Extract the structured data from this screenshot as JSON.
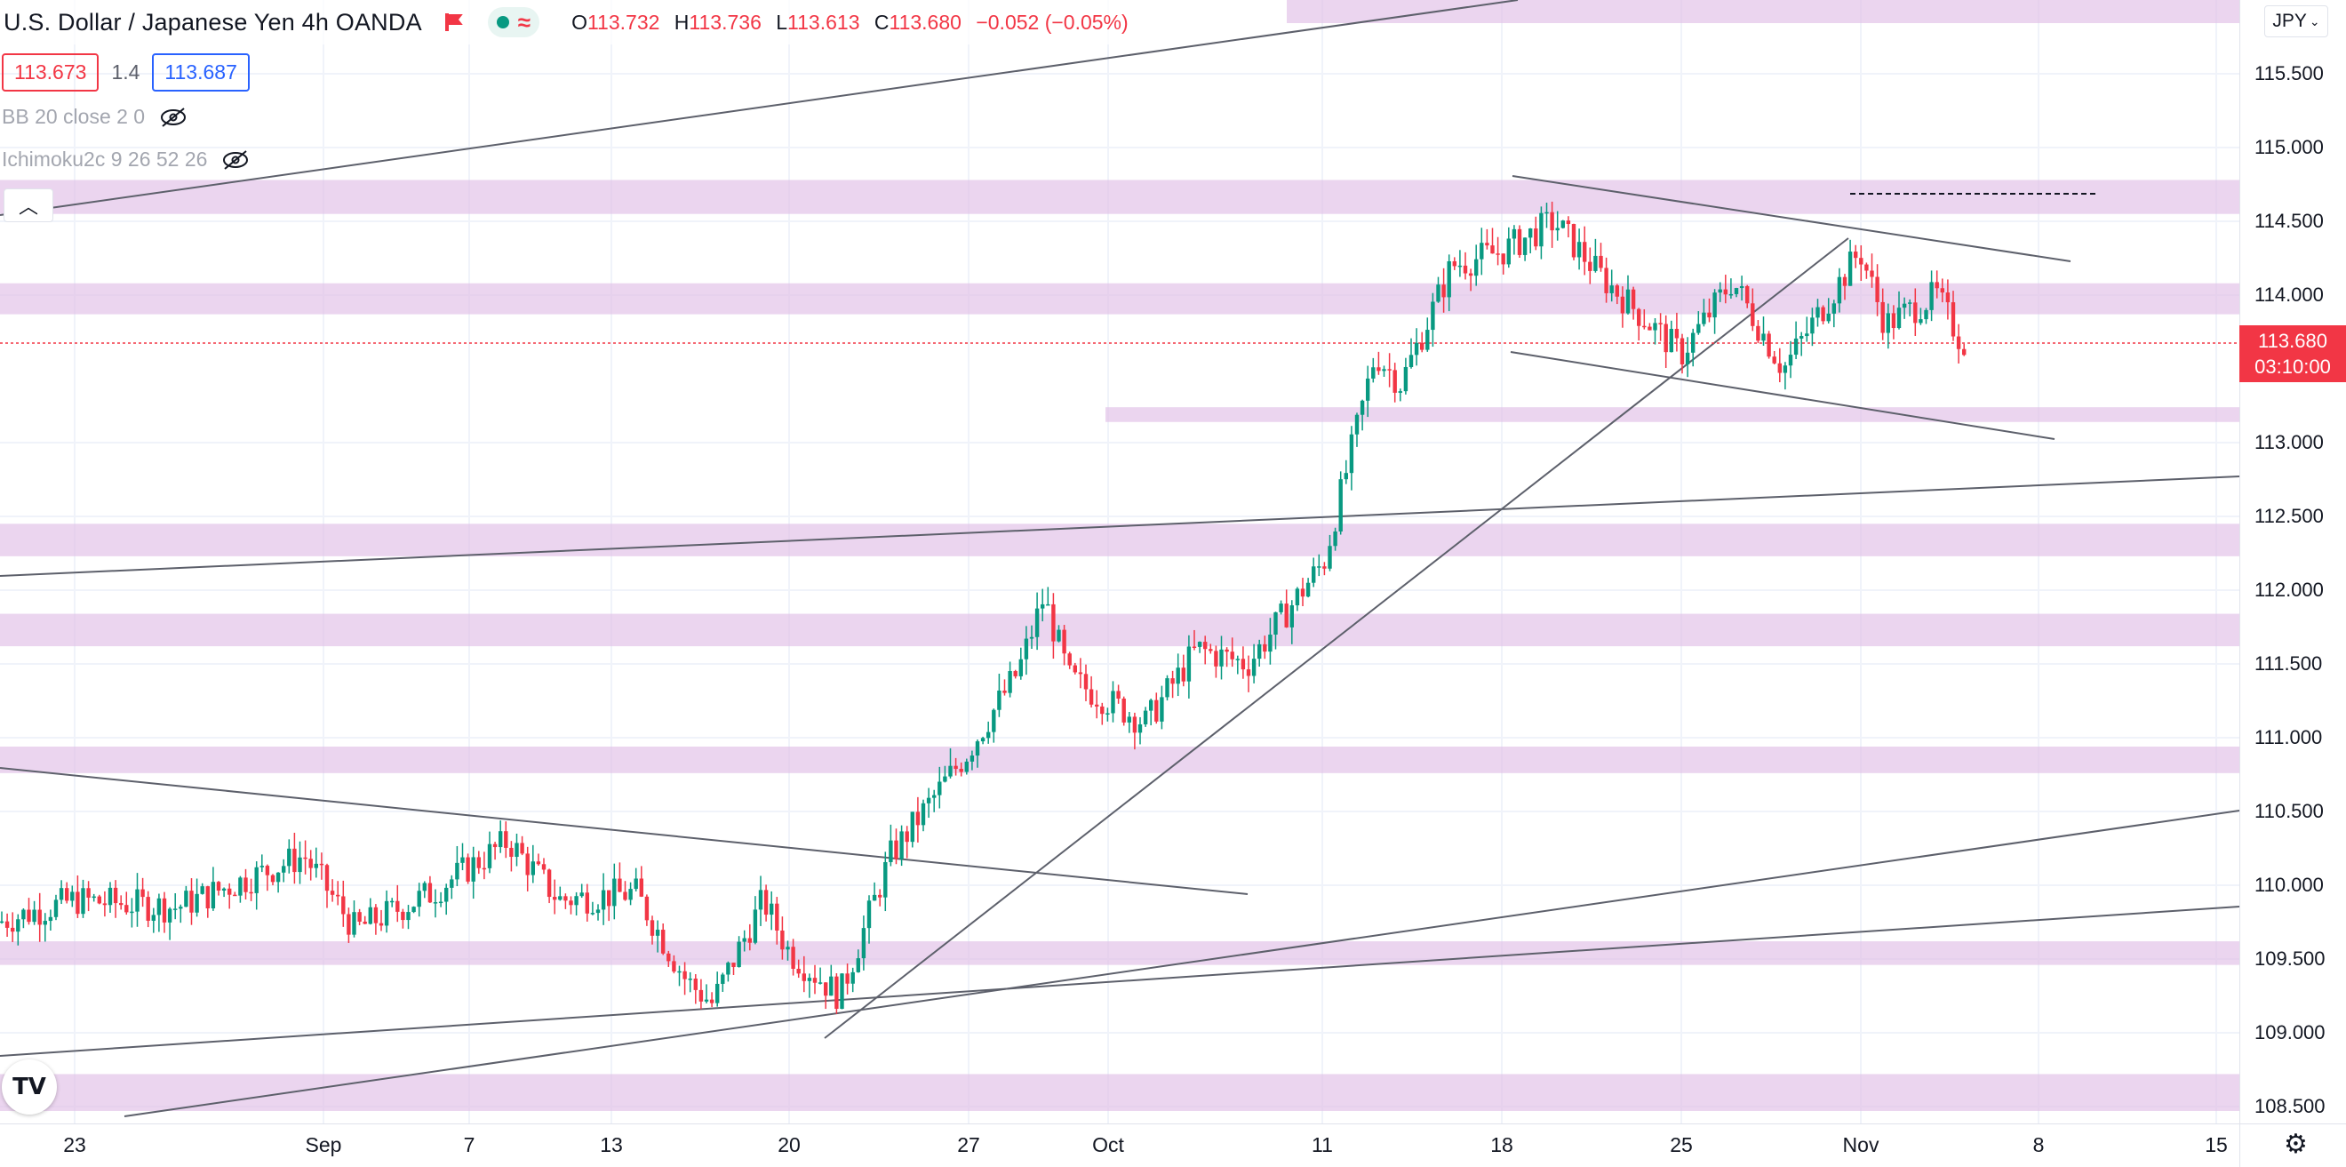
{
  "header": {
    "symbol_title": "U.S. Dollar / Japanese Yen",
    "interval": "4h",
    "broker": "OANDA",
    "ohlc": {
      "o_key": "O",
      "o": "113.732",
      "h_key": "H",
      "h": "113.736",
      "l_key": "L",
      "l": "113.613",
      "c_key": "C",
      "c": "113.680",
      "change": "−0.052 (−0.05%)"
    }
  },
  "quote": {
    "bid": "113.673",
    "spread": "1.4",
    "ask": "113.687"
  },
  "indicators": [
    {
      "label": "BB 20 close 2 0",
      "icon": "eye-crossed-icon"
    },
    {
      "label": "Ichimoku2c 9 26 52 26",
      "icon": "eye-crossed-icon"
    }
  ],
  "currency_selector": "JPY",
  "last_price": {
    "price": "113.680",
    "countdown": "03:10:00"
  },
  "colors": {
    "up": "#089981",
    "down": "#f23645",
    "zone": "#e1bee7",
    "line": "#5d606b"
  },
  "price_axis": {
    "labels": [
      "115.500",
      "115.000",
      "114.500",
      "114.000",
      "113.000",
      "112.500",
      "112.000",
      "111.500",
      "111.000",
      "110.500",
      "110.000",
      "109.500",
      "109.000",
      "108.500"
    ]
  },
  "time_axis": {
    "labels": [
      "23",
      "Sep",
      "7",
      "13",
      "20",
      "27",
      "Oct",
      "11",
      "18",
      "25",
      "Nov",
      "8",
      "15"
    ]
  },
  "chart_data": {
    "type": "candlestick",
    "ylim": [
      108.4,
      115.8
    ],
    "zones": [
      [
        114.55,
        114.78
      ],
      [
        113.87,
        114.08
      ],
      [
        113.14,
        113.24
      ],
      [
        112.23,
        112.45
      ],
      [
        111.62,
        111.84
      ],
      [
        110.76,
        110.94
      ],
      [
        109.46,
        109.62
      ],
      [
        108.47,
        108.72
      ]
    ],
    "path_points": [
      [
        "Aug 20",
        109.75
      ],
      [
        "Aug 23",
        109.9
      ],
      [
        "Aug 27",
        109.85
      ],
      [
        "Sep 1",
        110.2
      ],
      [
        "Sep 3",
        109.7
      ],
      [
        "Sep 6",
        109.95
      ],
      [
        "Sep 9",
        110.3
      ],
      [
        "Sep 11",
        109.9
      ],
      [
        "Sep 14",
        109.95
      ],
      [
        "Sep 16",
        109.35
      ],
      [
        "Sep 17",
        109.2
      ],
      [
        "Sep 19",
        109.9
      ],
      [
        "Sep 20",
        109.55
      ],
      [
        "Sep 22",
        109.25
      ],
      [
        "Sep 24",
        110.2
      ],
      [
        "Sep 27",
        110.9
      ],
      [
        "Sep 29",
        111.45
      ],
      [
        "Sep 30",
        111.95
      ],
      [
        "Oct 1",
        111.4
      ],
      [
        "Oct 4",
        111.1
      ],
      [
        "Oct 6",
        111.6
      ],
      [
        "Oct 8",
        111.5
      ],
      [
        "Oct 11",
        112.2
      ],
      [
        "Oct 13",
        113.6
      ],
      [
        "Oct 14",
        113.4
      ],
      [
        "Oct 16",
        114.2
      ],
      [
        "Oct 18",
        114.3
      ],
      [
        "Oct 20",
        114.5
      ],
      [
        "Oct 22",
        114.1
      ],
      [
        "Oct 25",
        113.6
      ],
      [
        "Oct 27",
        114.1
      ],
      [
        "Oct 29",
        113.5
      ],
      [
        "Nov 1",
        114.3
      ],
      [
        "Nov 2",
        113.8
      ],
      [
        "Nov 4",
        114.0
      ],
      [
        "Nov 5",
        113.68
      ]
    ]
  }
}
